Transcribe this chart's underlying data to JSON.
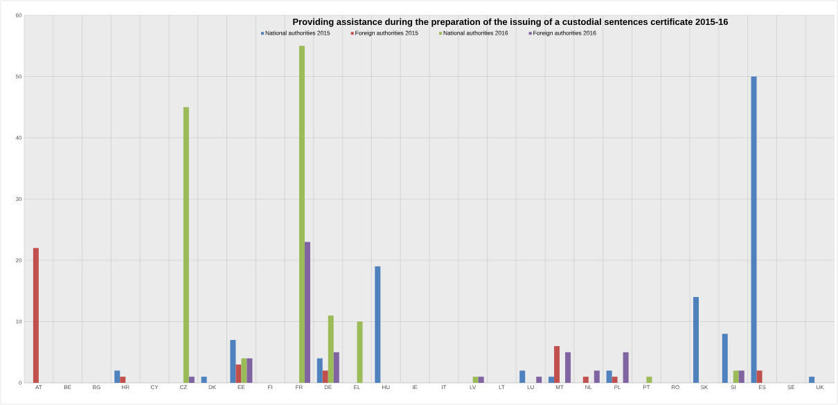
{
  "chart_data": {
    "type": "bar",
    "title": "Providing assistance during the preparation of the issuing of a custodial sentences certificate 2015-16",
    "categories": [
      "AT",
      "BE",
      "BG",
      "HR",
      "CY",
      "CZ",
      "DK",
      "EE",
      "FI",
      "FR",
      "DE",
      "EL",
      "HU",
      "IE",
      "IT",
      "LV",
      "LT",
      "LU",
      "MT",
      "NL",
      "PL",
      "PT",
      "RO",
      "SK",
      "SI",
      "ES",
      "SE",
      "UK"
    ],
    "series": [
      {
        "name": "National authorities 2015",
        "color": "#4f81bd",
        "values": [
          null,
          null,
          null,
          2,
          null,
          null,
          1,
          7,
          null,
          null,
          4,
          null,
          19,
          null,
          null,
          null,
          null,
          2,
          1,
          null,
          2,
          null,
          null,
          14,
          8,
          50,
          null,
          1
        ]
      },
      {
        "name": "Foreign authorities 2015",
        "color": "#c0504d",
        "values": [
          22,
          null,
          null,
          1,
          null,
          null,
          null,
          3,
          null,
          null,
          2,
          null,
          null,
          null,
          null,
          null,
          null,
          null,
          6,
          1,
          1,
          null,
          null,
          null,
          null,
          2,
          null,
          null
        ]
      },
      {
        "name": "National authorities 2016",
        "color": "#9bbb59",
        "values": [
          null,
          null,
          null,
          null,
          null,
          45,
          null,
          4,
          null,
          55,
          11,
          10,
          null,
          null,
          null,
          1,
          null,
          null,
          null,
          null,
          null,
          1,
          null,
          null,
          2,
          null,
          null,
          null
        ]
      },
      {
        "name": "Foreign authorities 2016",
        "color": "#8064a2",
        "values": [
          null,
          null,
          null,
          null,
          null,
          1,
          null,
          4,
          null,
          23,
          5,
          null,
          null,
          null,
          null,
          1,
          null,
          1,
          5,
          2,
          5,
          null,
          null,
          null,
          2,
          null,
          null,
          null
        ]
      }
    ],
    "ylim": [
      0,
      60
    ],
    "yticks": [
      0,
      10,
      20,
      30,
      40,
      50,
      60
    ],
    "grid": true,
    "legend": "top"
  }
}
